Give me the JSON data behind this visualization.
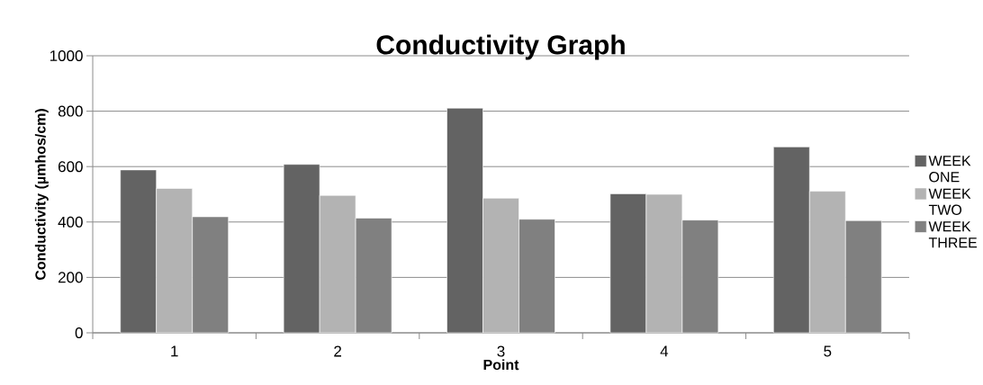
{
  "chart_data": {
    "type": "bar",
    "title": "Conductivity Graph",
    "xlabel": "Point",
    "ylabel": "Conductivity (µmhos/cm)",
    "categories": [
      "1",
      "2",
      "3",
      "4",
      "5"
    ],
    "series": [
      {
        "name": "WEEK ONE",
        "color": "#636363",
        "values": [
          588,
          608,
          811,
          502,
          671
        ]
      },
      {
        "name": "WEEK TWO",
        "color": "#b3b3b3",
        "values": [
          521,
          496,
          486,
          500,
          511
        ]
      },
      {
        "name": "WEEK THREE",
        "color": "#808080",
        "values": [
          419,
          414,
          410,
          407,
          405
        ]
      }
    ],
    "ylim": [
      0,
      1000
    ],
    "yticks": [
      0,
      200,
      400,
      600,
      800,
      1000
    ],
    "grid": "y",
    "legend": "right"
  }
}
